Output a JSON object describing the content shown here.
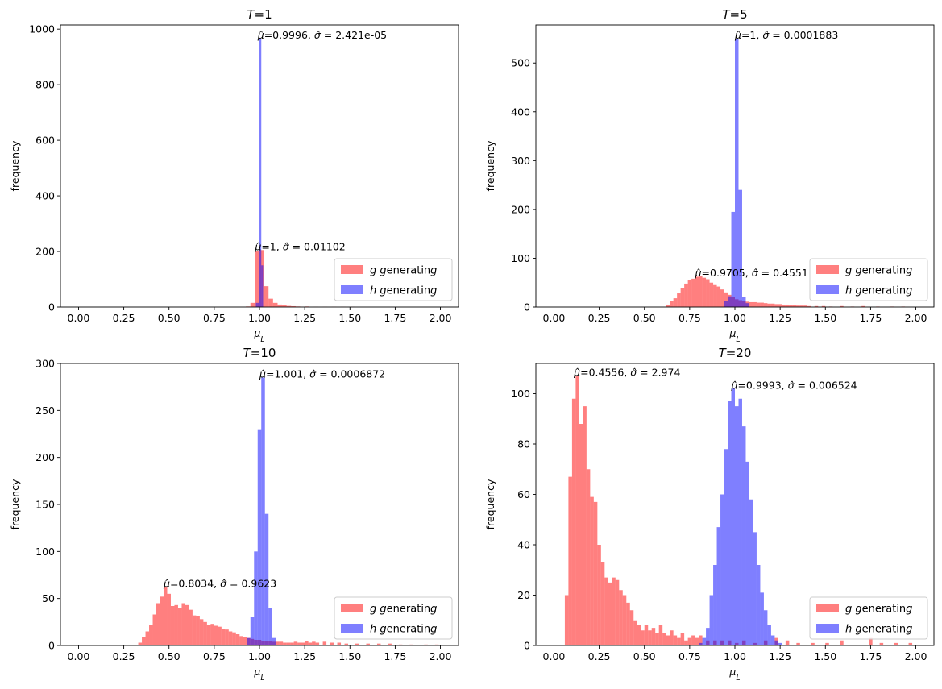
{
  "figure": {
    "legend_labels": [
      "g generating",
      "h generating"
    ],
    "legend_placement": "lower right"
  },
  "chart_data": [
    {
      "type": "bar",
      "subtype": "histogram",
      "title": "T=1",
      "xlabel": "μ_L",
      "ylabel": "frequency",
      "xlim": [
        -0.1,
        2.1
      ],
      "ylim": [
        0,
        1015
      ],
      "xticks": [
        "0.00",
        "0.25",
        "0.50",
        "0.75",
        "1.00",
        "1.25",
        "1.50",
        "1.75",
        "2.00"
      ],
      "yticks": [
        "0",
        "200",
        "400",
        "600",
        "800",
        "1000"
      ],
      "legend_placement": "lower right",
      "series": [
        {
          "name": "g generating",
          "color": "#ff0000",
          "opacity": 0.5,
          "bins": [
            [
              0.925,
              2
            ],
            [
              0.95,
              15
            ],
            [
              0.975,
              200
            ],
            [
              1.0,
              205
            ],
            [
              1.025,
              75
            ],
            [
              1.05,
              30
            ],
            [
              1.075,
              15
            ],
            [
              1.1,
              9
            ],
            [
              1.125,
              6
            ],
            [
              1.15,
              4
            ],
            [
              1.175,
              3
            ],
            [
              1.2,
              2
            ],
            [
              1.225,
              1
            ],
            [
              1.25,
              2
            ],
            [
              1.3,
              1
            ],
            [
              1.35,
              1
            ],
            [
              1.4,
              1
            ],
            [
              1.45,
              1
            ],
            [
              1.5,
              1
            ]
          ],
          "annotation": {
            "text": "μ̂=1, σ̂ = 0.01102",
            "x": 0.975,
            "y": 205
          }
        },
        {
          "name": "h generating",
          "color": "#0000ff",
          "opacity": 0.5,
          "bins": [
            [
              0.98,
              15
            ],
            [
              0.99,
              15
            ],
            [
              1.0,
              965
            ],
            [
              1.01,
              150
            ]
          ],
          "annotation": {
            "text": "μ̂=0.9996, σ̂ = 2.421e-05",
            "x": 0.99,
            "y": 965
          }
        }
      ]
    },
    {
      "type": "bar",
      "subtype": "histogram",
      "title": "T=5",
      "xlabel": "μ_L",
      "ylabel": "frequency",
      "xlim": [
        -0.1,
        2.1
      ],
      "ylim": [
        0,
        578
      ],
      "xticks": [
        "0.00",
        "0.25",
        "0.50",
        "0.75",
        "1.00",
        "1.25",
        "1.50",
        "1.75",
        "2.00"
      ],
      "yticks": [
        "0",
        "100",
        "200",
        "300",
        "400",
        "500"
      ],
      "legend_placement": "lower right",
      "series": [
        {
          "name": "g generating",
          "color": "#ff0000",
          "opacity": 0.5,
          "bins": [
            [
              0.62,
              5
            ],
            [
              0.64,
              12
            ],
            [
              0.66,
              18
            ],
            [
              0.68,
              28
            ],
            [
              0.7,
              38
            ],
            [
              0.72,
              48
            ],
            [
              0.74,
              55
            ],
            [
              0.76,
              58
            ],
            [
              0.78,
              62
            ],
            [
              0.8,
              63
            ],
            [
              0.82,
              60
            ],
            [
              0.84,
              57
            ],
            [
              0.86,
              50
            ],
            [
              0.88,
              45
            ],
            [
              0.9,
              42
            ],
            [
              0.92,
              36
            ],
            [
              0.94,
              30
            ],
            [
              0.96,
              25
            ],
            [
              0.98,
              20
            ],
            [
              1.0,
              16
            ],
            [
              1.02,
              14
            ],
            [
              1.04,
              12
            ],
            [
              1.06,
              11
            ],
            [
              1.08,
              10
            ],
            [
              1.1,
              10
            ],
            [
              1.12,
              9
            ],
            [
              1.14,
              9
            ],
            [
              1.16,
              8
            ],
            [
              1.18,
              7
            ],
            [
              1.2,
              7
            ],
            [
              1.22,
              6
            ],
            [
              1.24,
              6
            ],
            [
              1.26,
              5
            ],
            [
              1.28,
              5
            ],
            [
              1.3,
              4
            ],
            [
              1.32,
              4
            ],
            [
              1.34,
              3
            ],
            [
              1.36,
              3
            ],
            [
              1.38,
              3
            ],
            [
              1.4,
              2
            ],
            [
              1.44,
              2
            ],
            [
              1.48,
              2
            ],
            [
              1.52,
              1
            ],
            [
              1.58,
              2
            ],
            [
              1.64,
              1
            ],
            [
              1.7,
              2
            ],
            [
              1.78,
              1
            ],
            [
              1.86,
              1
            ],
            [
              1.92,
              1
            ]
          ],
          "annotation": {
            "text": "μ̂=0.9705, σ̂ = 0.4551",
            "x": 0.78,
            "y": 63
          }
        },
        {
          "name": "h generating",
          "color": "#0000ff",
          "opacity": 0.5,
          "bins": [
            [
              0.94,
              12
            ],
            [
              0.96,
              22
            ],
            [
              0.98,
              195
            ],
            [
              1.0,
              550
            ],
            [
              1.02,
              240
            ],
            [
              1.04,
              20
            ],
            [
              1.06,
              8
            ]
          ],
          "annotation": {
            "text": "μ̂=1, σ̂ = 0.0001883",
            "x": 1.0,
            "y": 550
          }
        }
      ]
    },
    {
      "type": "bar",
      "subtype": "histogram",
      "title": "T=10",
      "xlabel": "μ_L",
      "ylabel": "frequency",
      "xlim": [
        -0.1,
        2.1
      ],
      "ylim": [
        0,
        300
      ],
      "xticks": [
        "0.00",
        "0.25",
        "0.50",
        "0.75",
        "1.00",
        "1.25",
        "1.50",
        "1.75",
        "2.00"
      ],
      "yticks": [
        "0",
        "50",
        "100",
        "150",
        "200",
        "250",
        "300"
      ],
      "legend_placement": "lower right",
      "series": [
        {
          "name": "g generating",
          "color": "#ff0000",
          "opacity": 0.5,
          "bins": [
            [
              0.33,
              3
            ],
            [
              0.35,
              9
            ],
            [
              0.37,
              15
            ],
            [
              0.39,
              22
            ],
            [
              0.41,
              33
            ],
            [
              0.43,
              45
            ],
            [
              0.45,
              52
            ],
            [
              0.47,
              62
            ],
            [
              0.49,
              55
            ],
            [
              0.51,
              42
            ],
            [
              0.53,
              43
            ],
            [
              0.55,
              40
            ],
            [
              0.57,
              45
            ],
            [
              0.59,
              43
            ],
            [
              0.61,
              38
            ],
            [
              0.63,
              32
            ],
            [
              0.65,
              31
            ],
            [
              0.67,
              28
            ],
            [
              0.69,
              25
            ],
            [
              0.71,
              22
            ],
            [
              0.73,
              23
            ],
            [
              0.75,
              21
            ],
            [
              0.77,
              20
            ],
            [
              0.79,
              18
            ],
            [
              0.81,
              17
            ],
            [
              0.83,
              15
            ],
            [
              0.85,
              14
            ],
            [
              0.87,
              12
            ],
            [
              0.89,
              10
            ],
            [
              0.91,
              9
            ],
            [
              0.93,
              8
            ],
            [
              0.95,
              7
            ],
            [
              0.97,
              6
            ],
            [
              0.99,
              6
            ],
            [
              1.01,
              5
            ],
            [
              1.03,
              5
            ],
            [
              1.05,
              5
            ],
            [
              1.07,
              4
            ],
            [
              1.09,
              4
            ],
            [
              1.11,
              4
            ],
            [
              1.13,
              3
            ],
            [
              1.15,
              3
            ],
            [
              1.17,
              3
            ],
            [
              1.19,
              4
            ],
            [
              1.21,
              3
            ],
            [
              1.23,
              3
            ],
            [
              1.25,
              5
            ],
            [
              1.27,
              3
            ],
            [
              1.29,
              4
            ],
            [
              1.31,
              3
            ],
            [
              1.35,
              4
            ],
            [
              1.39,
              3
            ],
            [
              1.43,
              3
            ],
            [
              1.47,
              2
            ],
            [
              1.53,
              2
            ],
            [
              1.59,
              2
            ],
            [
              1.65,
              2
            ],
            [
              1.71,
              2
            ],
            [
              1.77,
              1
            ],
            [
              1.83,
              1
            ],
            [
              1.91,
              1
            ],
            [
              1.97,
              1
            ]
          ],
          "annotation": {
            "text": "μ̂=0.8034, σ̂ = 0.9623",
            "x": 0.47,
            "y": 62
          }
        },
        {
          "name": "h generating",
          "color": "#0000ff",
          "opacity": 0.5,
          "bins": [
            [
              0.93,
              8
            ],
            [
              0.95,
              30
            ],
            [
              0.97,
              100
            ],
            [
              0.99,
              230
            ],
            [
              1.01,
              285
            ],
            [
              1.03,
              140
            ],
            [
              1.05,
              40
            ],
            [
              1.07,
              8
            ]
          ],
          "annotation": {
            "text": "μ̂=1.001, σ̂ = 0.0006872",
            "x": 1.0,
            "y": 285
          }
        }
      ]
    },
    {
      "type": "bar",
      "subtype": "histogram",
      "title": "T=20",
      "xlabel": "μ_L",
      "ylabel": "frequency",
      "xlim": [
        -0.1,
        2.1
      ],
      "ylim": [
        0,
        112
      ],
      "xticks": [
        "0.00",
        "0.25",
        "0.50",
        "0.75",
        "1.00",
        "1.25",
        "1.50",
        "1.75",
        "2.00"
      ],
      "yticks": [
        "0",
        "20",
        "40",
        "60",
        "80",
        "100"
      ],
      "legend_placement": "lower right",
      "series": [
        {
          "name": "g generating",
          "color": "#ff0000",
          "opacity": 0.5,
          "bins": [
            [
              0.06,
              20
            ],
            [
              0.08,
              67
            ],
            [
              0.1,
              98
            ],
            [
              0.12,
              107
            ],
            [
              0.14,
              88
            ],
            [
              0.16,
              95
            ],
            [
              0.18,
              70
            ],
            [
              0.2,
              59
            ],
            [
              0.22,
              57
            ],
            [
              0.24,
              40
            ],
            [
              0.26,
              33
            ],
            [
              0.28,
              27
            ],
            [
              0.3,
              25
            ],
            [
              0.32,
              27
            ],
            [
              0.34,
              26
            ],
            [
              0.36,
              22
            ],
            [
              0.38,
              20
            ],
            [
              0.4,
              17
            ],
            [
              0.42,
              14
            ],
            [
              0.44,
              10
            ],
            [
              0.46,
              8
            ],
            [
              0.48,
              6
            ],
            [
              0.5,
              8
            ],
            [
              0.52,
              6
            ],
            [
              0.54,
              7
            ],
            [
              0.56,
              5
            ],
            [
              0.58,
              8
            ],
            [
              0.6,
              5
            ],
            [
              0.62,
              4
            ],
            [
              0.64,
              6
            ],
            [
              0.66,
              4
            ],
            [
              0.68,
              3
            ],
            [
              0.7,
              5
            ],
            [
              0.72,
              2
            ],
            [
              0.74,
              3
            ],
            [
              0.76,
              4
            ],
            [
              0.78,
              3
            ],
            [
              0.8,
              4
            ],
            [
              0.84,
              2
            ],
            [
              0.88,
              2
            ],
            [
              0.92,
              2
            ],
            [
              0.96,
              2
            ],
            [
              1.0,
              1
            ],
            [
              1.04,
              2
            ],
            [
              1.1,
              1
            ],
            [
              1.16,
              2
            ],
            [
              1.22,
              3
            ],
            [
              1.28,
              2
            ],
            [
              1.34,
              1
            ],
            [
              1.42,
              1
            ],
            [
              1.5,
              1
            ],
            [
              1.58,
              2
            ],
            [
              1.74,
              3
            ],
            [
              1.8,
              1
            ],
            [
              1.88,
              1
            ],
            [
              1.96,
              1
            ]
          ],
          "annotation": {
            "text": "μ̂=0.4556, σ̂ = 2.974",
            "x": 0.11,
            "y": 107
          }
        },
        {
          "name": "h generating",
          "color": "#0000ff",
          "opacity": 0.5,
          "bins": [
            [
              0.8,
              1
            ],
            [
              0.82,
              3
            ],
            [
              0.84,
              7
            ],
            [
              0.86,
              20
            ],
            [
              0.88,
              32
            ],
            [
              0.9,
              47
            ],
            [
              0.92,
              60
            ],
            [
              0.94,
              78
            ],
            [
              0.96,
              97
            ],
            [
              0.98,
              102
            ],
            [
              1.0,
              95
            ],
            [
              1.02,
              98
            ],
            [
              1.04,
              87
            ],
            [
              1.06,
              73
            ],
            [
              1.08,
              58
            ],
            [
              1.1,
              45
            ],
            [
              1.12,
              32
            ],
            [
              1.14,
              21
            ],
            [
              1.16,
              14
            ],
            [
              1.18,
              8
            ],
            [
              1.2,
              4
            ],
            [
              1.22,
              2
            ],
            [
              1.24,
              1
            ]
          ],
          "annotation": {
            "text": "μ̂=0.9993, σ̂ = 0.006524",
            "x": 0.98,
            "y": 102
          }
        }
      ]
    }
  ]
}
